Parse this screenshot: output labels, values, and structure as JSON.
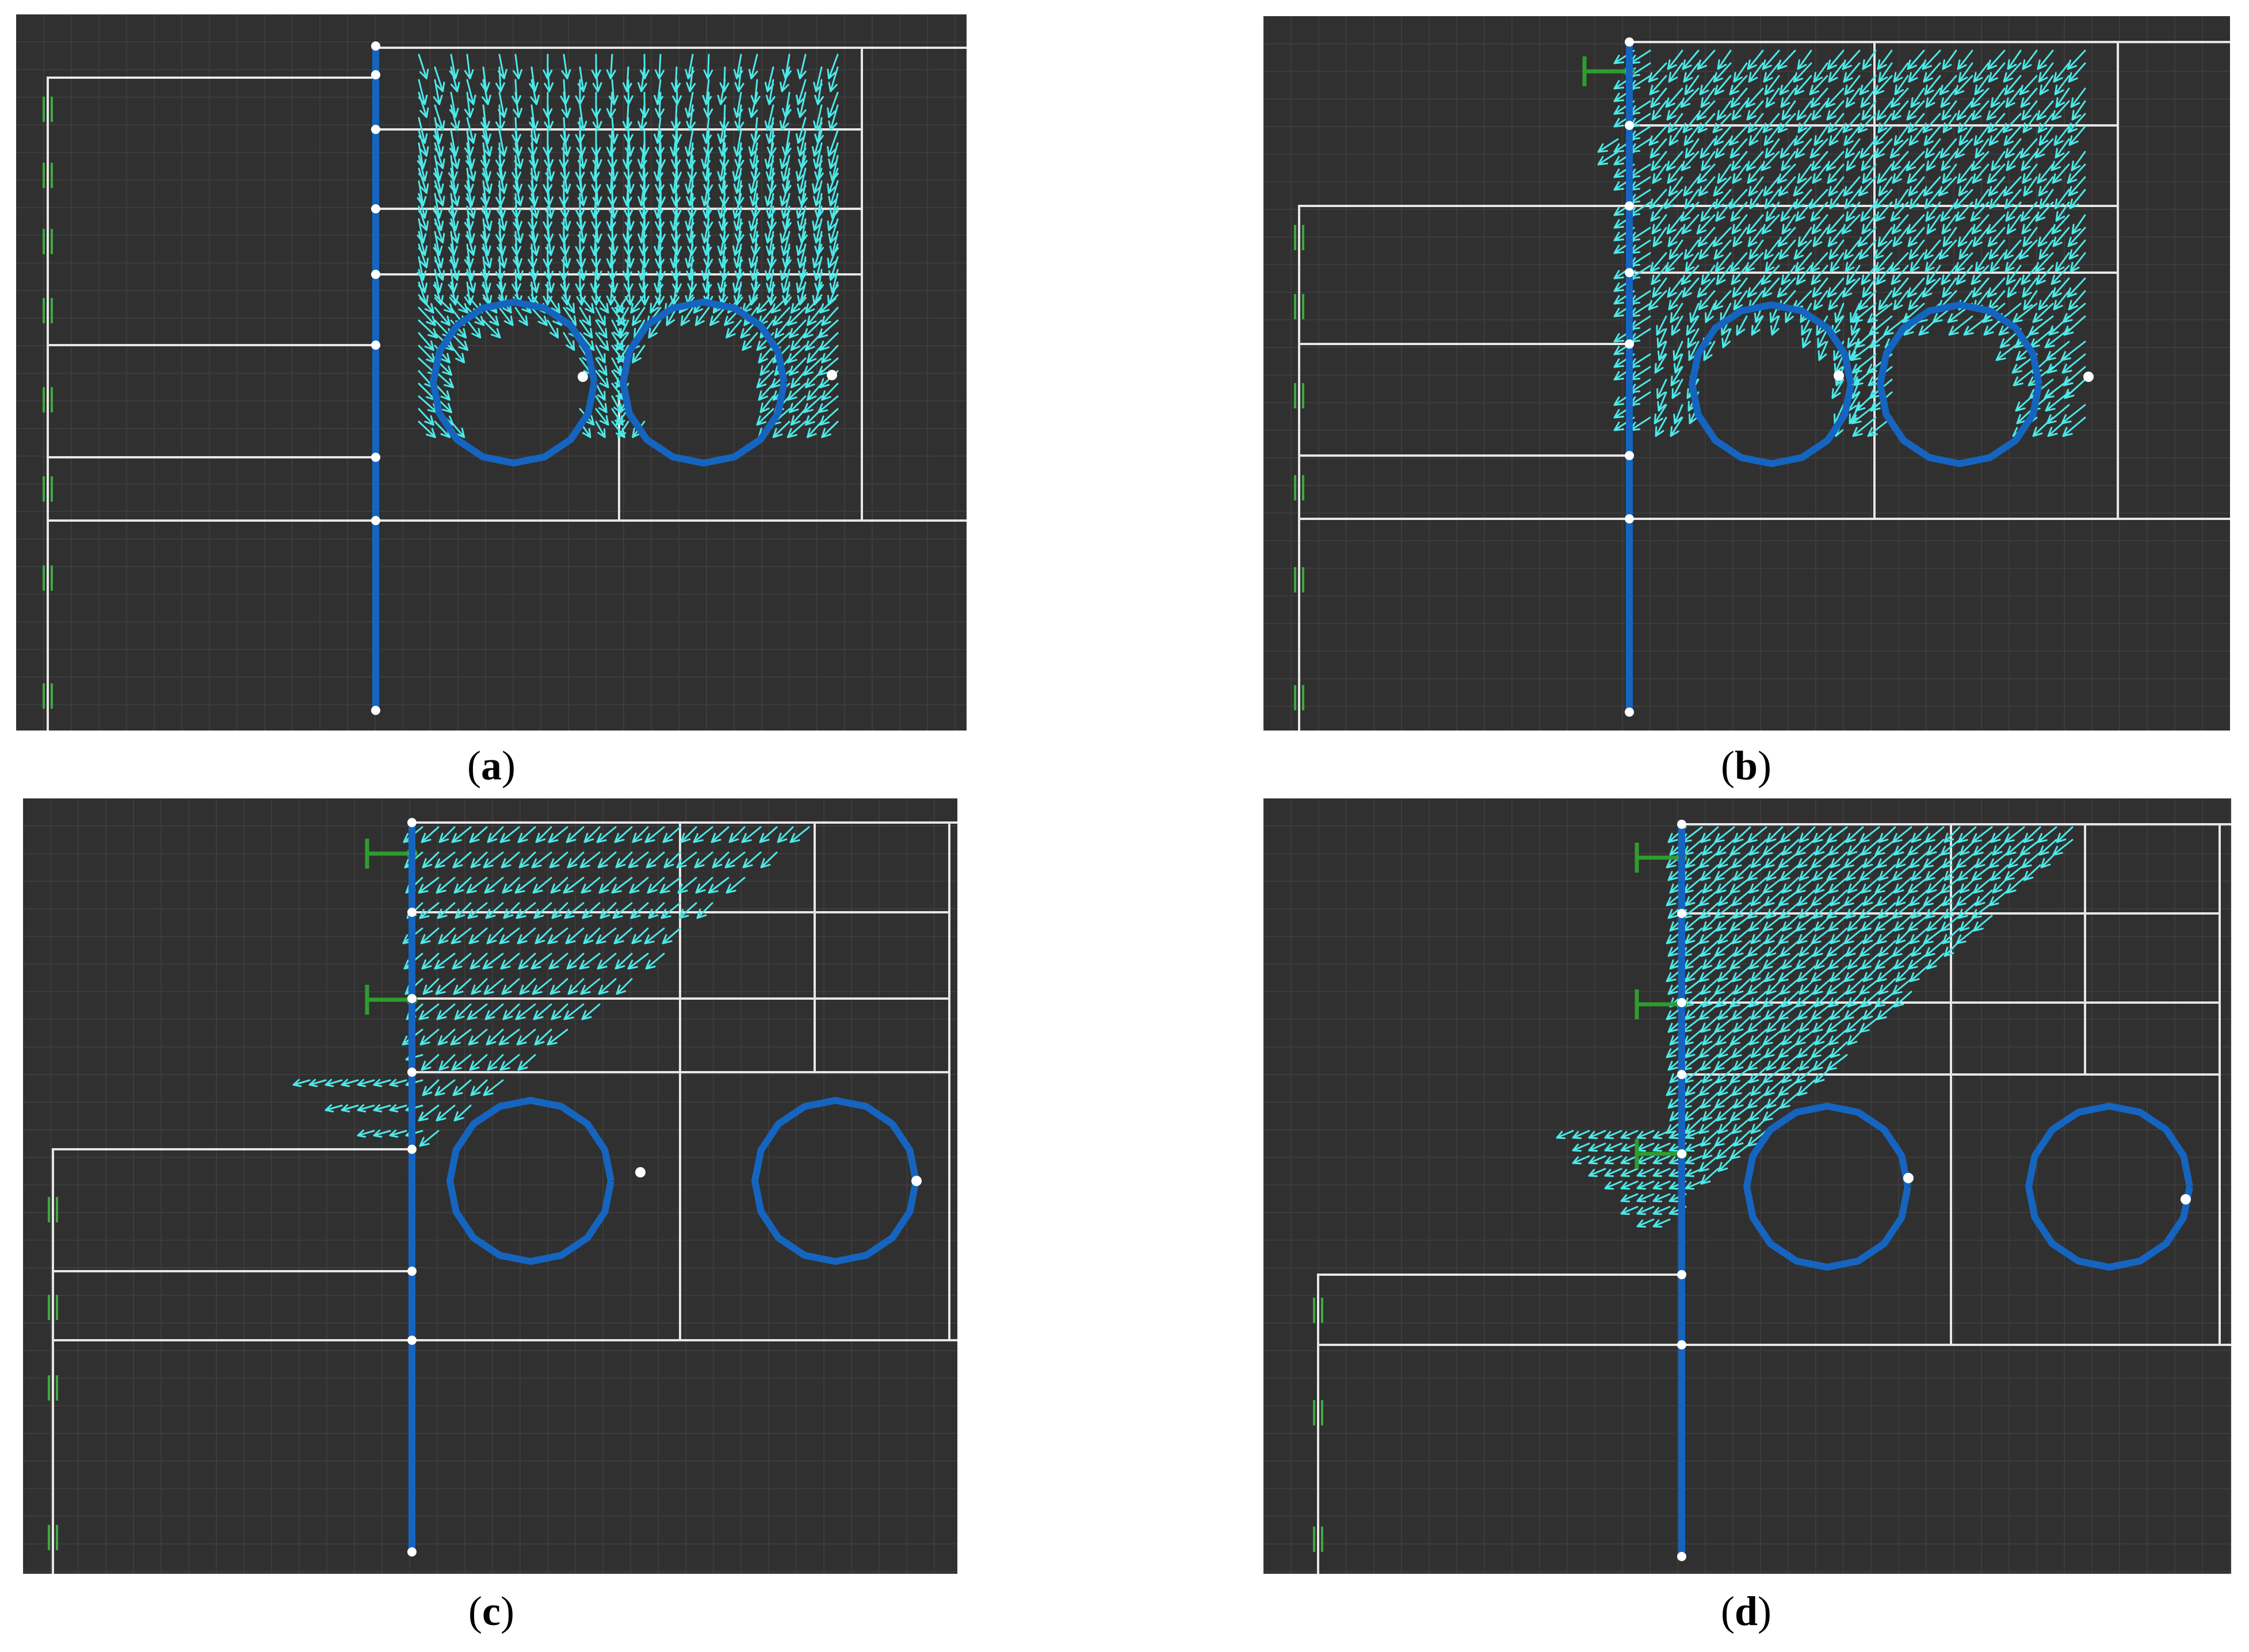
{
  "figure": {
    "panels": [
      {
        "id": "a",
        "caption_letter": "a",
        "variant": "two-tunnels-symmetric",
        "anchors": 0
      },
      {
        "id": "b",
        "caption_letter": "b",
        "variant": "two-tunnels-slope",
        "anchors": 1
      },
      {
        "id": "c",
        "caption_letter": "c",
        "variant": "slope-deep-cut",
        "anchors": 2
      },
      {
        "id": "d",
        "caption_letter": "d",
        "variant": "slope-deep-cut-3-anchors",
        "anchors": 3
      }
    ],
    "colors": {
      "background": "#303030",
      "grid": "#3c3c3c",
      "boundary": "#e6e6e6",
      "pile": "#1565c0",
      "tunnel": "#1565c0",
      "vector": "#4de8e8",
      "anchor": "#2e9d2e",
      "support": "#3fa83f",
      "node": "#ffffff"
    }
  }
}
